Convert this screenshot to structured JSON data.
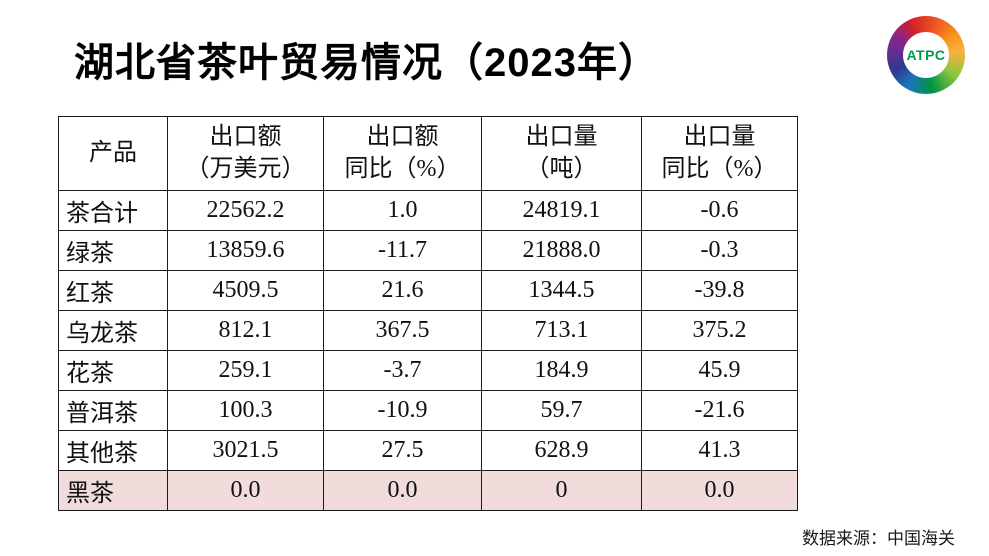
{
  "title": "湖北省茶叶贸易情况（2023年）",
  "logo": {
    "text": "ATPC",
    "text_color": "#009b48"
  },
  "source": "数据来源：中国海关",
  "table": {
    "highlight_color": "#f2dcdb",
    "border_color": "#1a1a1a",
    "headers": [
      {
        "line1": "产品",
        "line2": ""
      },
      {
        "line1": "出口额",
        "line2": "（万美元）"
      },
      {
        "line1": "出口额",
        "line2": "同比（%）"
      },
      {
        "line1": "出口量",
        "line2": "（吨）"
      },
      {
        "line1": "出口量",
        "line2": "同比（%）"
      }
    ],
    "rows": [
      {
        "product": "茶合计",
        "export_value": "22562.2",
        "export_value_yoy": "1.0",
        "export_volume": "24819.1",
        "export_volume_yoy": "-0.6",
        "highlight": false
      },
      {
        "product": "绿茶",
        "export_value": "13859.6",
        "export_value_yoy": "-11.7",
        "export_volume": "21888.0",
        "export_volume_yoy": "-0.3",
        "highlight": false
      },
      {
        "product": "红茶",
        "export_value": "4509.5",
        "export_value_yoy": "21.6",
        "export_volume": "1344.5",
        "export_volume_yoy": "-39.8",
        "highlight": false
      },
      {
        "product": "乌龙茶",
        "export_value": "812.1",
        "export_value_yoy": "367.5",
        "export_volume": "713.1",
        "export_volume_yoy": "375.2",
        "highlight": false
      },
      {
        "product": "花茶",
        "export_value": "259.1",
        "export_value_yoy": "-3.7",
        "export_volume": "184.9",
        "export_volume_yoy": "45.9",
        "highlight": false
      },
      {
        "product": "普洱茶",
        "export_value": "100.3",
        "export_value_yoy": "-10.9",
        "export_volume": "59.7",
        "export_volume_yoy": "-21.6",
        "highlight": false
      },
      {
        "product": "其他茶",
        "export_value": "3021.5",
        "export_value_yoy": "27.5",
        "export_volume": "628.9",
        "export_volume_yoy": "41.3",
        "highlight": false
      },
      {
        "product": "黑茶",
        "export_value": "0.0",
        "export_value_yoy": "0.0",
        "export_volume": "0",
        "export_volume_yoy": "0.0",
        "highlight": true
      }
    ]
  },
  "chart_data": {
    "type": "table",
    "title": "湖北省茶叶贸易情况（2023年）",
    "columns": [
      "产品",
      "出口额（万美元）",
      "出口额同比（%）",
      "出口量（吨）",
      "出口量同比（%）"
    ],
    "rows": [
      [
        "茶合计",
        22562.2,
        1.0,
        24819.1,
        -0.6
      ],
      [
        "绿茶",
        13859.6,
        -11.7,
        21888.0,
        -0.3
      ],
      [
        "红茶",
        4509.5,
        21.6,
        1344.5,
        -39.8
      ],
      [
        "乌龙茶",
        812.1,
        367.5,
        713.1,
        375.2
      ],
      [
        "花茶",
        259.1,
        -3.7,
        184.9,
        45.9
      ],
      [
        "普洱茶",
        100.3,
        -10.9,
        59.7,
        -21.6
      ],
      [
        "其他茶",
        3021.5,
        27.5,
        628.9,
        41.3
      ],
      [
        "黑茶",
        0.0,
        0.0,
        0,
        0.0
      ]
    ],
    "highlighted_row": "黑茶",
    "source_note": "数据来源：中国海关"
  }
}
